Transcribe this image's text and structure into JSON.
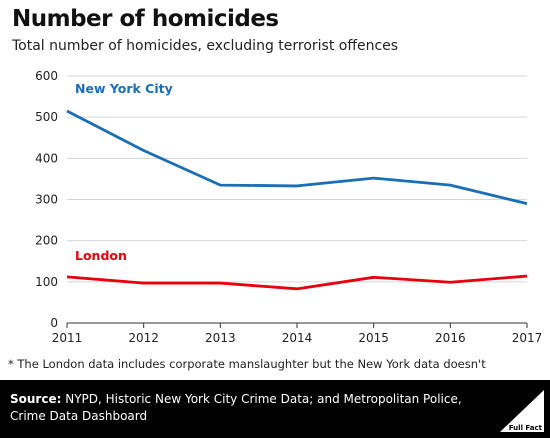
{
  "header": {
    "title": "Number of homicides",
    "subtitle": "Total number of homicides, excluding terrorist offences"
  },
  "chart_data": {
    "type": "line",
    "x": [
      2011,
      2012,
      2013,
      2014,
      2015,
      2016,
      2017
    ],
    "series": [
      {
        "name": "New York City",
        "color": "#1a6eb5",
        "values": [
          515,
          419,
          335,
          333,
          352,
          335,
          290
        ]
      },
      {
        "name": "London",
        "color": "#e8000b",
        "values": [
          112,
          97,
          97,
          83,
          111,
          99,
          114
        ]
      }
    ],
    "ylim": [
      0,
      600
    ],
    "yticks": [
      0,
      100,
      200,
      300,
      400,
      500,
      600
    ],
    "grid": true
  },
  "footnote": "* The London data includes corporate manslaughter but the New York data doesn't",
  "source": {
    "label": "Source:",
    "text": " NYPD, Historic New York City Crime Data; and Metropolitan Police, Crime Data Dashboard"
  },
  "logo": {
    "icon": "full-fact-logo-icon",
    "text": "Full Fact"
  }
}
